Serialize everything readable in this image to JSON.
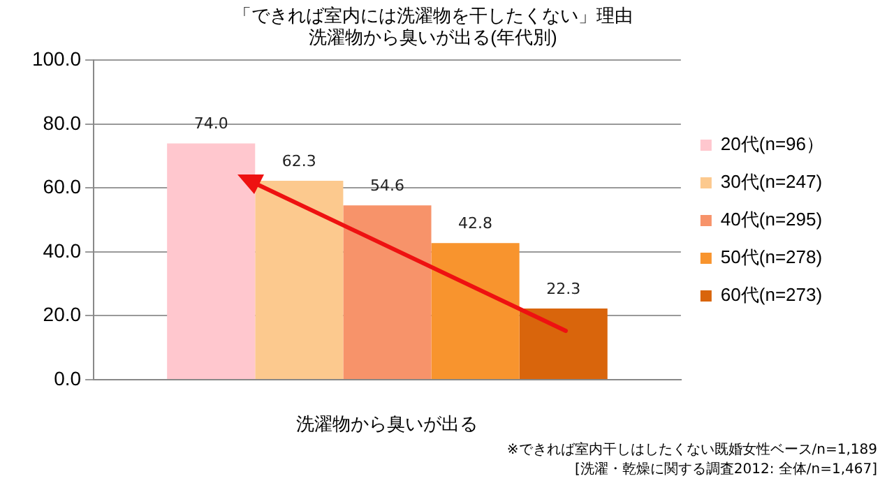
{
  "chart_data": {
    "type": "bar",
    "title": "「できれば室内には洗濯物を干したくない」理由",
    "subtitle": "洗濯物から臭いが出る(年代別)",
    "xlabel": "洗濯物から臭いが出る",
    "categories": [
      null
    ],
    "series": [
      {
        "name": "20代(n=96）",
        "color": "#ffc7ce",
        "values": [
          74.0
        ],
        "value_labels": [
          "74.0"
        ]
      },
      {
        "name": "30代(n=247)",
        "color": "#fcc98e",
        "values": [
          62.3
        ],
        "value_labels": [
          "62.3"
        ]
      },
      {
        "name": "40代(n=295)",
        "color": "#f7936a",
        "values": [
          54.6
        ],
        "value_labels": [
          "54.6"
        ]
      },
      {
        "name": "50代(n=278)",
        "color": "#f8942e",
        "values": [
          42.8
        ],
        "value_labels": [
          "42.8"
        ]
      },
      {
        "name": "60代(n=273)",
        "color": "#d9650c",
        "values": [
          22.3
        ],
        "value_labels": [
          "22.3"
        ]
      }
    ],
    "ylim": [
      0,
      100
    ],
    "yticks": [
      {
        "value": 0,
        "label": "0.0"
      },
      {
        "value": 20,
        "label": "20.0"
      },
      {
        "value": 40,
        "label": "40.0"
      },
      {
        "value": 60,
        "label": "60.0"
      },
      {
        "value": 80,
        "label": "80.0"
      },
      {
        "value": 100,
        "label": "100.0"
      }
    ],
    "grid": "y",
    "legend": "right",
    "annotations": [
      "※できれば室内干しはしたくない既婚女性ベース/n=1,189",
      "[洗濯・乾燥に関する調査2012: 全体/n=1,467]"
    ]
  }
}
